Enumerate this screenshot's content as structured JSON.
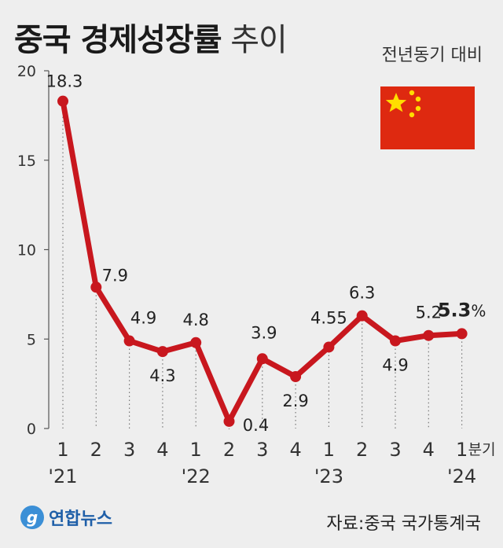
{
  "header": {
    "title_bold": "중국 경제성장률",
    "title_light": "추이",
    "subtitle": "전년동기 대비"
  },
  "footer": {
    "logo_text": "연합뉴스",
    "logo_mark": "g",
    "source": "자료:중국 국가통계국"
  },
  "flag": {
    "name": "china-flag",
    "colors": {
      "field": "#de2910",
      "stars": "#ffde00"
    }
  },
  "chart_data": {
    "type": "line",
    "ylim": [
      0,
      20
    ],
    "yticks": [
      0,
      5,
      10,
      15,
      20
    ],
    "grid": false,
    "unit_suffix": "%",
    "x_unit": "분기",
    "categories": [
      "1",
      "2",
      "3",
      "4",
      "1",
      "2",
      "3",
      "4",
      "1",
      "2",
      "3",
      "4",
      "1"
    ],
    "year_labels": [
      {
        "index": 0,
        "label": "'21"
      },
      {
        "index": 4,
        "label": "'22"
      },
      {
        "index": 8,
        "label": "'23"
      },
      {
        "index": 12,
        "label": "'24"
      }
    ],
    "series": [
      {
        "values": [
          18.3,
          7.9,
          4.9,
          4.3,
          4.8,
          0.4,
          3.9,
          2.9,
          4.55,
          6.3,
          4.9,
          5.2,
          5.3
        ],
        "labels": [
          "18.3",
          "7.9",
          "4.9",
          "4.3",
          "4.8",
          "0.4",
          "3.9",
          "2.9",
          "4.55",
          "6.3",
          "4.9",
          "5.2",
          "5.3"
        ],
        "color": "#c8171e"
      }
    ]
  }
}
